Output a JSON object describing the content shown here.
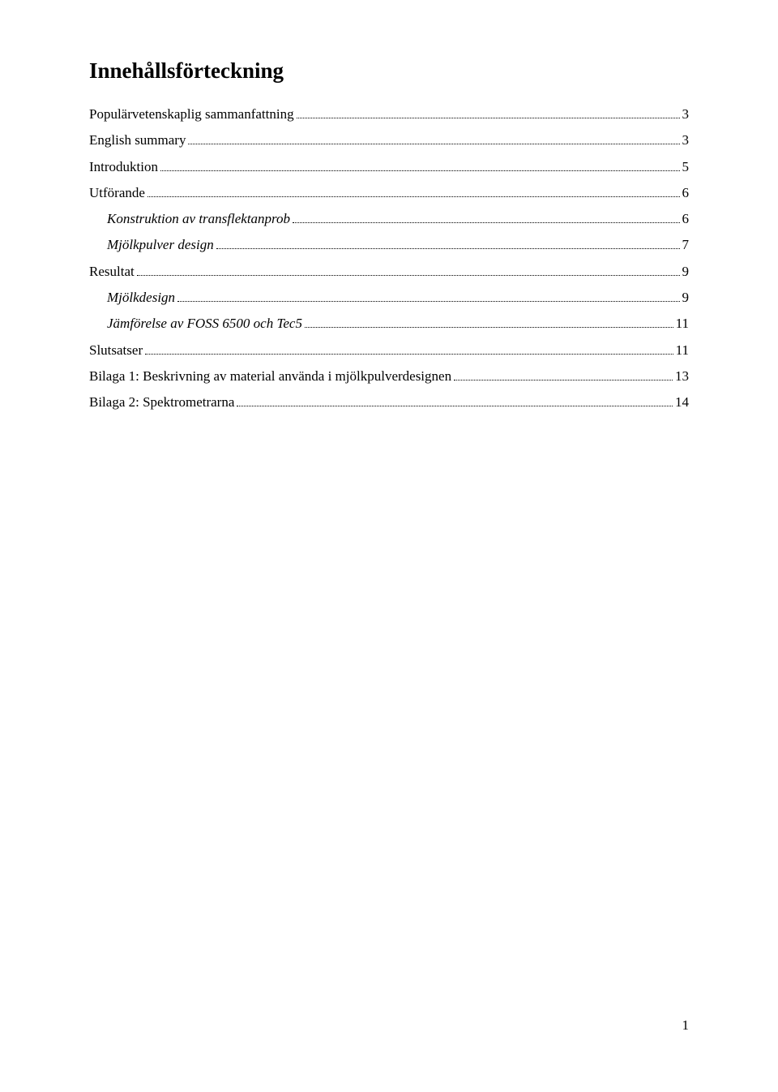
{
  "title": "Innehållsförteckning",
  "toc": {
    "e0": {
      "label": "Populärvetenskaplig sammanfattning",
      "page": "3"
    },
    "e1": {
      "label": "English summary",
      "page": "3"
    },
    "e2": {
      "label": "Introduktion",
      "page": "5"
    },
    "e3": {
      "label": "Utförande",
      "page": "6"
    },
    "e4": {
      "label": "Konstruktion av transflektanprob",
      "page": "6"
    },
    "e5": {
      "label": "Mjölkpulver design",
      "page": "7"
    },
    "e6": {
      "label": "Resultat",
      "page": "9"
    },
    "e7": {
      "label": "Mjölkdesign",
      "page": "9"
    },
    "e8": {
      "label": "Jämförelse av FOSS 6500 och Tec5",
      "page": "11"
    },
    "e9": {
      "label": "Slutsatser",
      "page": "11"
    },
    "e10": {
      "label": "Bilaga 1: Beskrivning av material använda i mjölkpulverdesignen",
      "page": "13"
    },
    "e11": {
      "label": "Bilaga 2: Spektrometrarna",
      "page": "14"
    }
  },
  "footer_page_number": "1",
  "colors": {
    "text": "#000000",
    "background": "#ffffff"
  },
  "font": {
    "family": "Times New Roman",
    "title_size_pt": 20,
    "body_size_pt": 12
  }
}
